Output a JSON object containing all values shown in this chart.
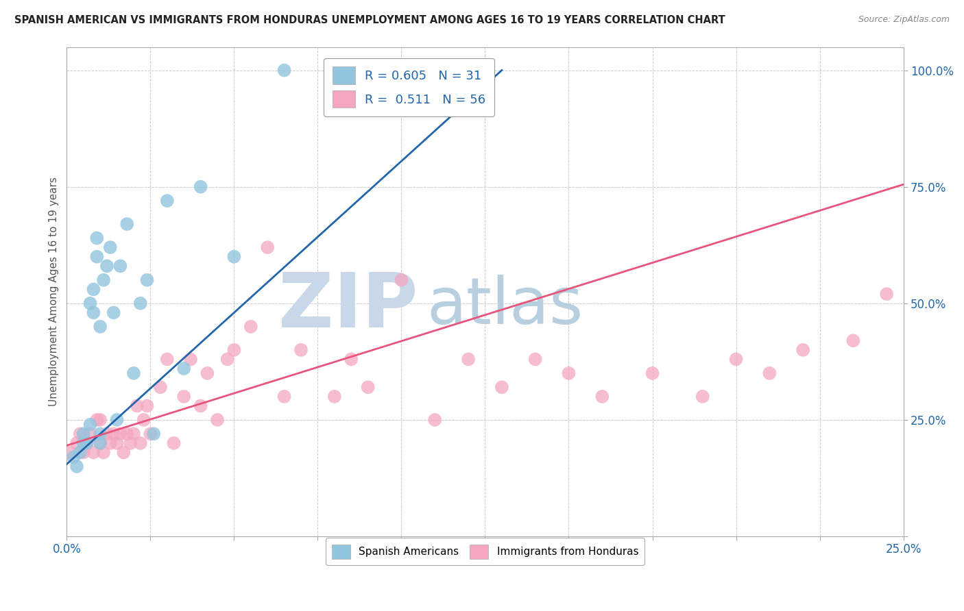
{
  "title": "SPANISH AMERICAN VS IMMIGRANTS FROM HONDURAS UNEMPLOYMENT AMONG AGES 16 TO 19 YEARS CORRELATION CHART",
  "source": "Source: ZipAtlas.com",
  "ylabel": "Unemployment Among Ages 16 to 19 years",
  "r_blue": 0.605,
  "n_blue": 31,
  "r_pink": 0.511,
  "n_pink": 56,
  "color_blue": "#92c5de",
  "color_pink": "#f4a6c0",
  "color_blue_line": "#2166ac",
  "color_pink_line": "#e8547a",
  "blue_scatter_x": [
    0.002,
    0.003,
    0.004,
    0.005,
    0.005,
    0.006,
    0.007,
    0.007,
    0.008,
    0.008,
    0.009,
    0.009,
    0.01,
    0.01,
    0.01,
    0.011,
    0.012,
    0.013,
    0.014,
    0.015,
    0.016,
    0.018,
    0.02,
    0.022,
    0.024,
    0.026,
    0.03,
    0.035,
    0.04,
    0.05,
    0.065
  ],
  "blue_scatter_y": [
    0.17,
    0.15,
    0.18,
    0.2,
    0.22,
    0.2,
    0.24,
    0.5,
    0.48,
    0.53,
    0.6,
    0.64,
    0.2,
    0.22,
    0.45,
    0.55,
    0.58,
    0.62,
    0.48,
    0.25,
    0.58,
    0.67,
    0.35,
    0.5,
    0.55,
    0.22,
    0.72,
    0.36,
    0.75,
    0.6,
    1.0
  ],
  "pink_scatter_x": [
    0.001,
    0.003,
    0.004,
    0.005,
    0.006,
    0.007,
    0.008,
    0.009,
    0.01,
    0.01,
    0.011,
    0.012,
    0.013,
    0.014,
    0.015,
    0.016,
    0.017,
    0.018,
    0.019,
    0.02,
    0.021,
    0.022,
    0.023,
    0.024,
    0.025,
    0.028,
    0.03,
    0.032,
    0.035,
    0.037,
    0.04,
    0.042,
    0.045,
    0.048,
    0.05,
    0.055,
    0.06,
    0.065,
    0.07,
    0.08,
    0.085,
    0.09,
    0.1,
    0.11,
    0.12,
    0.13,
    0.14,
    0.15,
    0.16,
    0.175,
    0.19,
    0.2,
    0.21,
    0.22,
    0.235,
    0.245
  ],
  "pink_scatter_y": [
    0.18,
    0.2,
    0.22,
    0.18,
    0.2,
    0.22,
    0.18,
    0.25,
    0.2,
    0.25,
    0.18,
    0.22,
    0.2,
    0.22,
    0.2,
    0.22,
    0.18,
    0.22,
    0.2,
    0.22,
    0.28,
    0.2,
    0.25,
    0.28,
    0.22,
    0.32,
    0.38,
    0.2,
    0.3,
    0.38,
    0.28,
    0.35,
    0.25,
    0.38,
    0.4,
    0.45,
    0.62,
    0.3,
    0.4,
    0.3,
    0.38,
    0.32,
    0.55,
    0.25,
    0.38,
    0.32,
    0.38,
    0.35,
    0.3,
    0.35,
    0.3,
    0.38,
    0.35,
    0.4,
    0.42,
    0.52
  ],
  "blue_line_x0": 0.0,
  "blue_line_y0": 0.155,
  "blue_line_x1": 0.13,
  "blue_line_y1": 1.0,
  "pink_line_x0": 0.0,
  "pink_line_y0": 0.195,
  "pink_line_x1": 0.25,
  "pink_line_y1": 0.755,
  "xmin": 0.0,
  "xmax": 0.25,
  "ymin": 0.0,
  "ymax": 1.05,
  "watermark_zip_color": "#c8d8e8",
  "watermark_atlas_color": "#b8cfe0"
}
